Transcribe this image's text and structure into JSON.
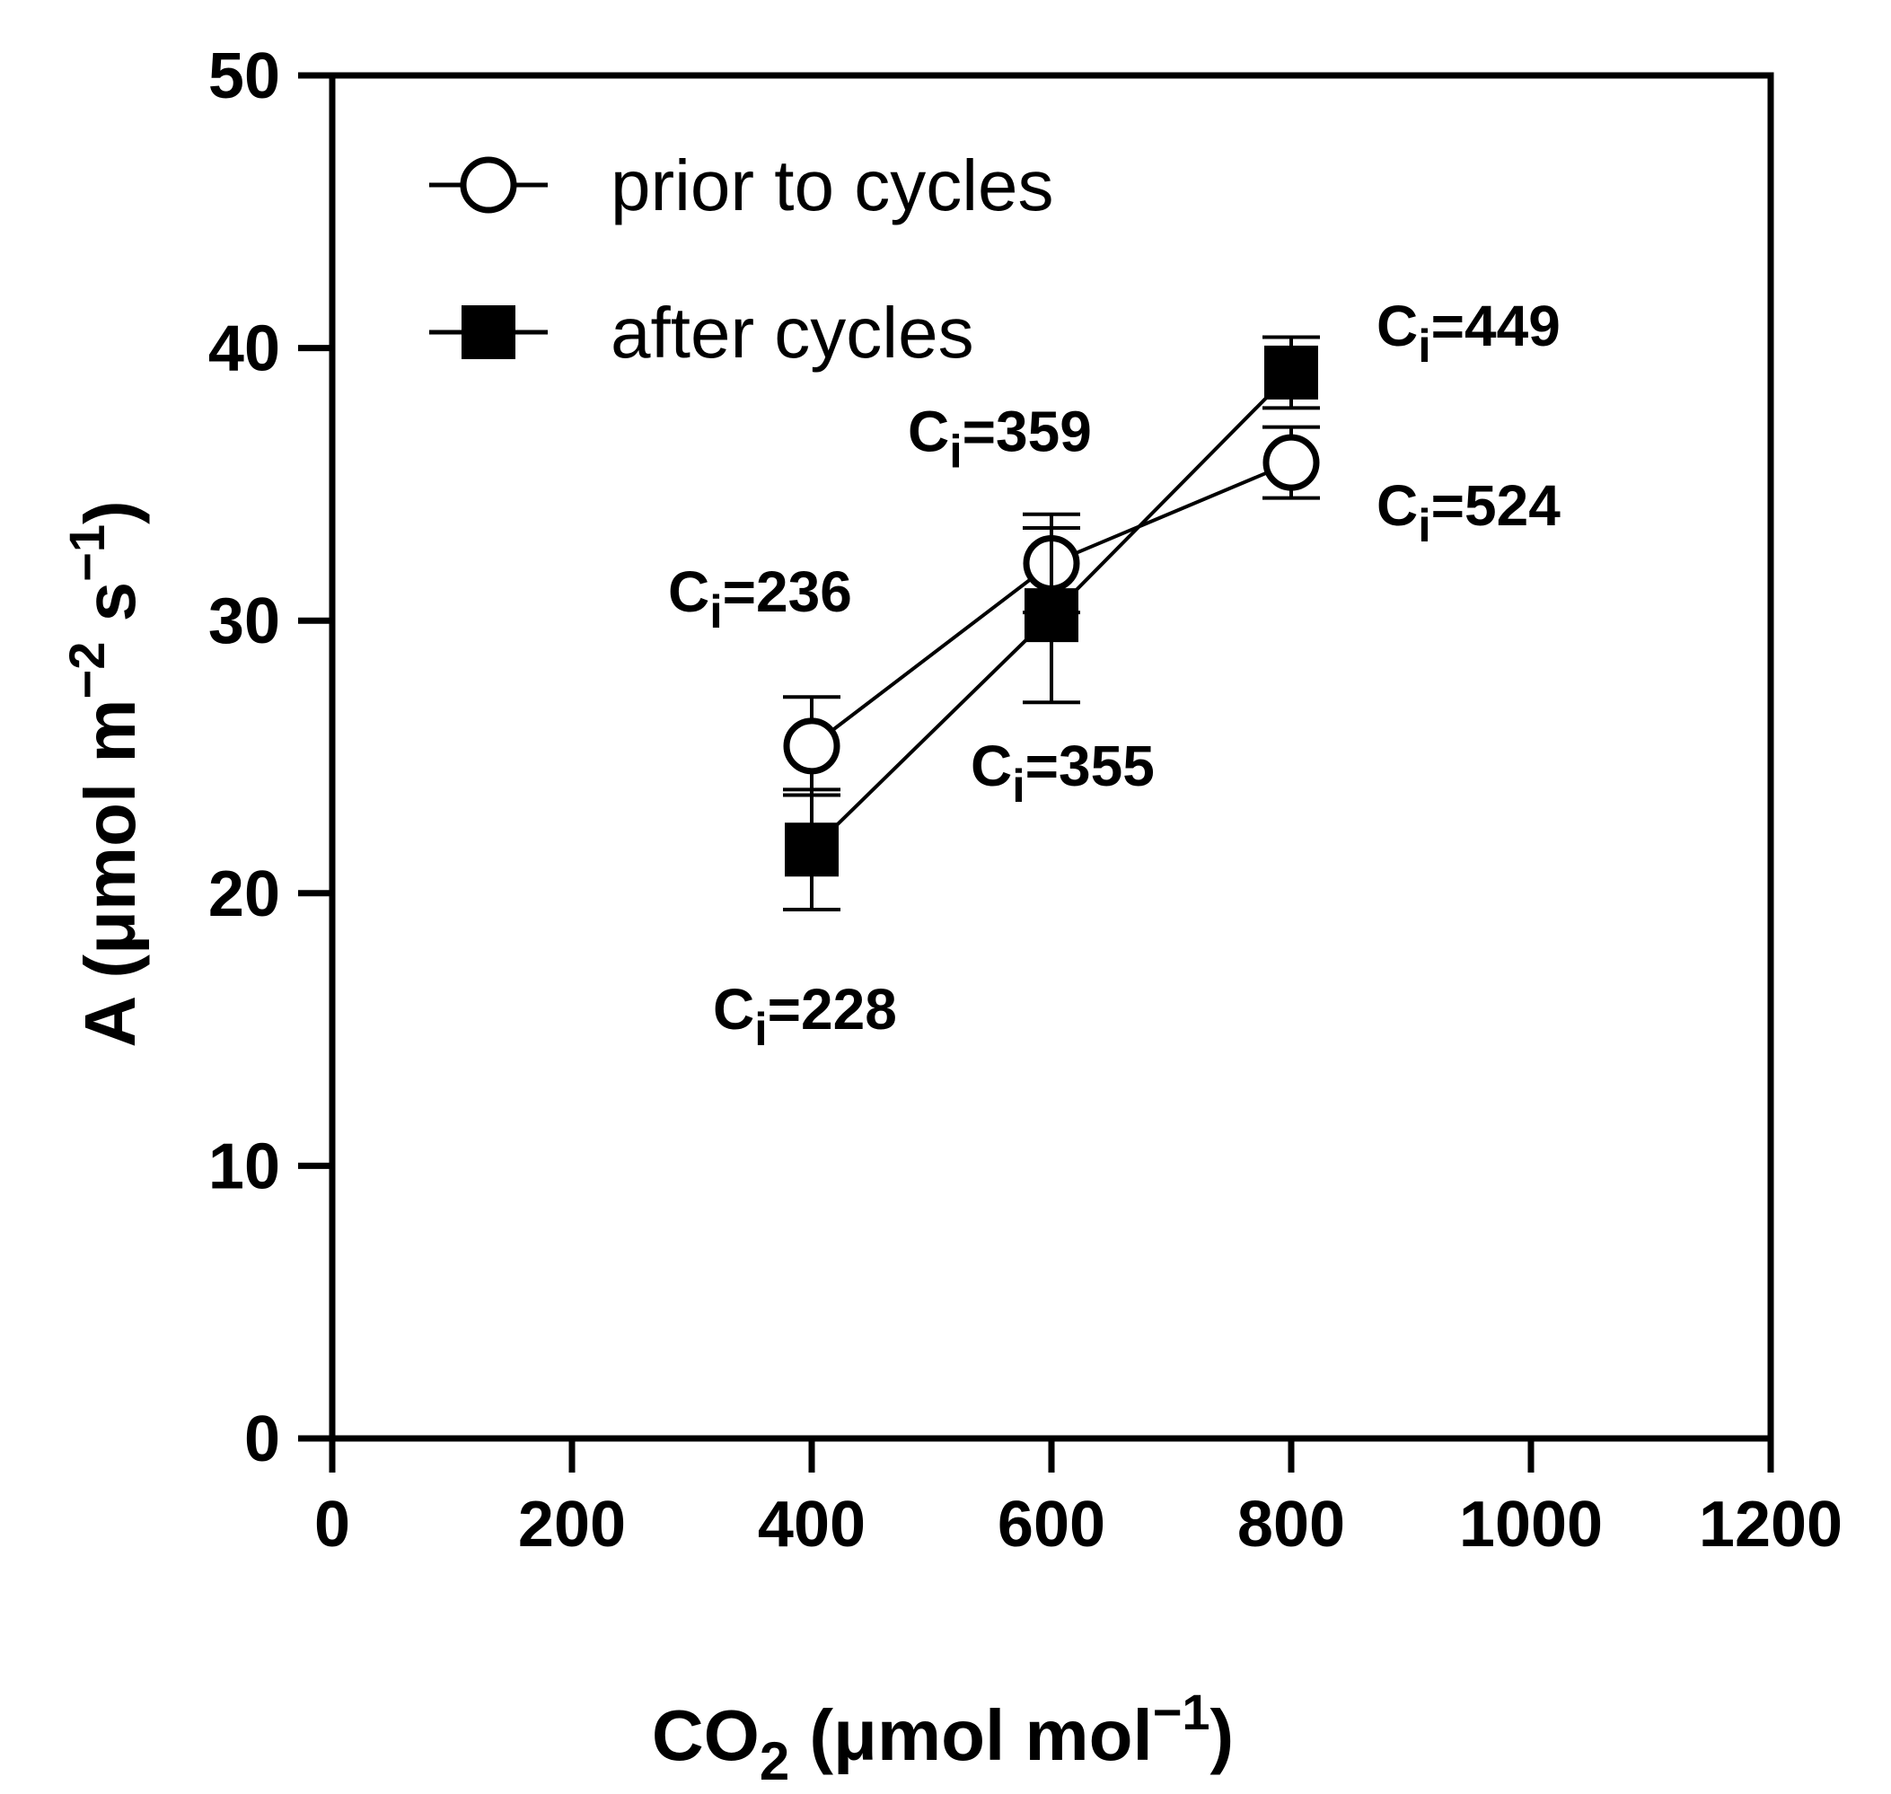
{
  "chart_data": {
    "type": "line",
    "title": "",
    "xlabel": {
      "main": "CO",
      "sub": "2",
      "unit_pre": " (μmol mol",
      "sup": "−1",
      "unit_post": ")"
    },
    "ylabel": {
      "main": "A (μmol m",
      "sup1": "−2",
      "mid": " s",
      "sup2": "−1",
      "post": ")"
    },
    "xlim": [
      0,
      1200
    ],
    "ylim": [
      0,
      50
    ],
    "x_ticks": [
      "0",
      "200",
      "400",
      "600",
      "800",
      "1000",
      "1200"
    ],
    "y_ticks": [
      "0",
      "10",
      "20",
      "30",
      "40",
      "50"
    ],
    "legend_position": "top-left",
    "series": [
      {
        "name": "prior to cycles",
        "marker": "open-circle",
        "x": [
          400,
          600,
          800
        ],
        "y": [
          25.4,
          32.1,
          35.8
        ],
        "err": [
          1.8,
          1.8,
          1.3
        ]
      },
      {
        "name": "after cycles",
        "marker": "filled-square",
        "x": [
          400,
          600,
          800
        ],
        "y": [
          21.6,
          30.2,
          39.1
        ],
        "err": [
          2.2,
          3.2,
          1.3
        ]
      }
    ],
    "annotations": [
      {
        "main": "C",
        "sub": "i",
        "rest": "=236",
        "x": 400,
        "y": 25.4,
        "series": "prior to cycles"
      },
      {
        "main": "C",
        "sub": "i",
        "rest": "=359",
        "x": 600,
        "y": 32.1,
        "series": "prior to cycles"
      },
      {
        "main": "C",
        "sub": "i",
        "rest": "=524",
        "x": 800,
        "y": 35.8,
        "series": "prior to cycles"
      },
      {
        "main": "C",
        "sub": "i",
        "rest": "=228",
        "x": 400,
        "y": 21.6,
        "series": "after cycles"
      },
      {
        "main": "C",
        "sub": "i",
        "rest": "=355",
        "x": 600,
        "y": 30.2,
        "series": "after cycles"
      },
      {
        "main": "C",
        "sub": "i",
        "rest": "=449",
        "x": 800,
        "y": 39.1,
        "series": "after cycles"
      }
    ]
  }
}
